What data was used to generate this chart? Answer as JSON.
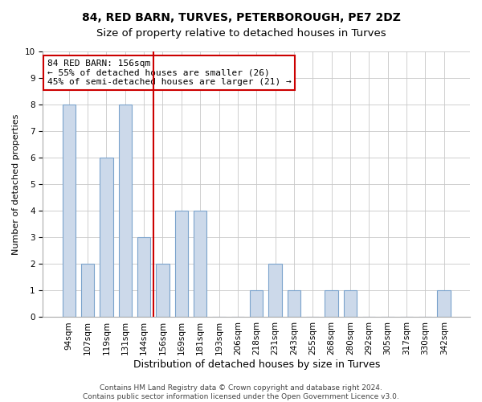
{
  "title": "84, RED BARN, TURVES, PETERBOROUGH, PE7 2DZ",
  "subtitle": "Size of property relative to detached houses in Turves",
  "xlabel": "Distribution of detached houses by size in Turves",
  "ylabel": "Number of detached properties",
  "categories": [
    "94sqm",
    "107sqm",
    "119sqm",
    "131sqm",
    "144sqm",
    "156sqm",
    "169sqm",
    "181sqm",
    "193sqm",
    "206sqm",
    "218sqm",
    "231sqm",
    "243sqm",
    "255sqm",
    "268sqm",
    "280sqm",
    "292sqm",
    "305sqm",
    "317sqm",
    "330sqm",
    "342sqm"
  ],
  "values": [
    8,
    2,
    6,
    8,
    3,
    2,
    4,
    4,
    0,
    0,
    1,
    2,
    1,
    0,
    1,
    1,
    0,
    0,
    0,
    0,
    1
  ],
  "bar_color": "#ccd9ea",
  "bar_edge_color": "#7ba3cc",
  "marker_index": 5,
  "marker_color": "#cc0000",
  "ylim": [
    0,
    10
  ],
  "yticks": [
    0,
    1,
    2,
    3,
    4,
    5,
    6,
    7,
    8,
    9,
    10
  ],
  "grid_color": "#c8c8c8",
  "annotation_title": "84 RED BARN: 156sqm",
  "annotation_line1": "← 55% of detached houses are smaller (26)",
  "annotation_line2": "45% of semi-detached houses are larger (21) →",
  "annotation_box_color": "#ffffff",
  "annotation_box_edge_color": "#cc0000",
  "footer_line1": "Contains HM Land Registry data © Crown copyright and database right 2024.",
  "footer_line2": "Contains public sector information licensed under the Open Government Licence v3.0.",
  "title_fontsize": 10,
  "xlabel_fontsize": 9,
  "ylabel_fontsize": 8,
  "tick_fontsize": 7.5,
  "annotation_fontsize": 8,
  "footer_fontsize": 6.5,
  "bar_width": 0.7
}
